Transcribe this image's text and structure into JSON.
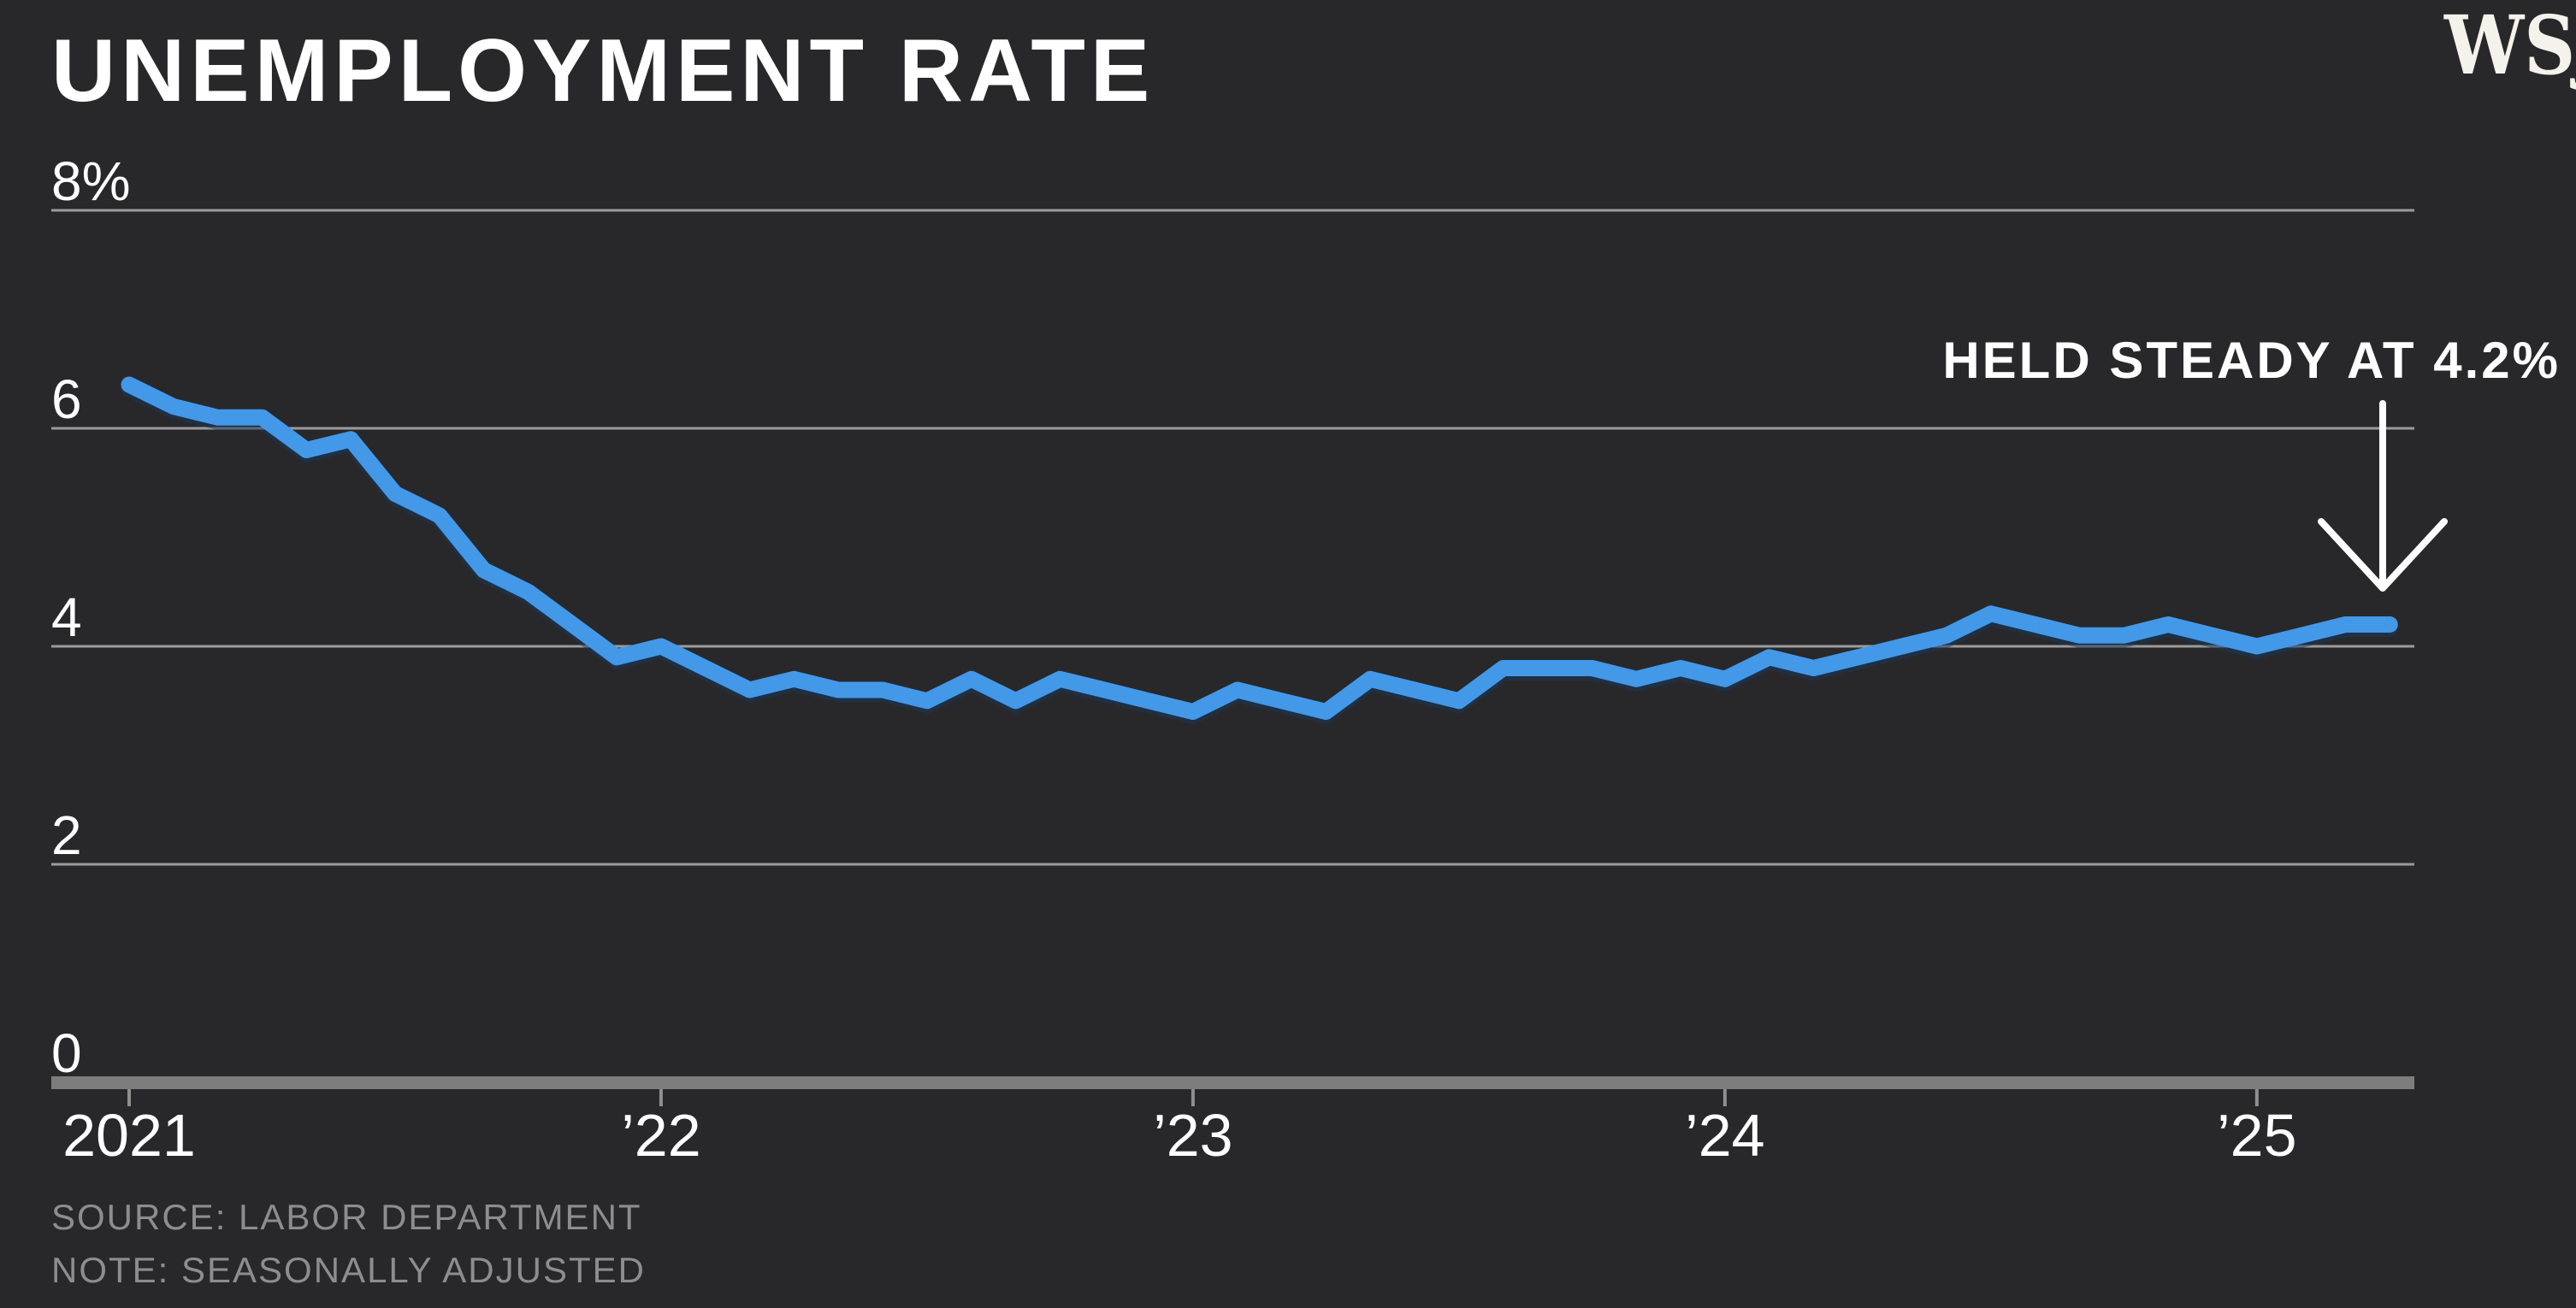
{
  "header": {
    "title": "UNEMPLOYMENT RATE",
    "logo_text": "WSJ."
  },
  "annotation": {
    "label": "HELD STEADY AT 4.2%"
  },
  "footer": {
    "source_line": "SOURCE: LABOR DEPARTMENT",
    "note_line": "NOTE: SEASONALLY ADJUSTED"
  },
  "colors": {
    "background": "#28282a",
    "accent_line": "#4398e8",
    "line_shadow": "#16375e",
    "gridline": "#9b9b9b",
    "axis_bar": "#7d7d7d",
    "tick": "#8f8f8f",
    "text_primary": "#ffffff",
    "text_muted": "#8d8d8d"
  },
  "chart_data": {
    "type": "line",
    "title": "UNEMPLOYMENT RATE",
    "y_unit": "percent",
    "x_start": "Jan 2021",
    "x_end": "Apr 2025",
    "frequency": "monthly",
    "grid": true,
    "legend": false,
    "ylim": [
      0,
      8.3
    ],
    "y_ticks": [
      {
        "label": "8%",
        "value": 8
      },
      {
        "label": "6",
        "value": 6
      },
      {
        "label": "4",
        "value": 4
      },
      {
        "label": "2",
        "value": 2
      },
      {
        "label": "0",
        "value": 0
      }
    ],
    "x_ticks": [
      {
        "label": "2021",
        "month_index": 0
      },
      {
        "label": "’22",
        "month_index": 12
      },
      {
        "label": "’23",
        "month_index": 24
      },
      {
        "label": "’24",
        "month_index": 36
      },
      {
        "label": "’25",
        "month_index": 48
      }
    ],
    "series": [
      {
        "name": "Unemployment rate, seasonally adjusted",
        "color": "#4398e8",
        "values": [
          6.4,
          6.2,
          6.1,
          6.1,
          5.8,
          5.9,
          5.4,
          5.2,
          4.7,
          4.5,
          4.2,
          3.9,
          4.0,
          3.8,
          3.6,
          3.7,
          3.6,
          3.6,
          3.5,
          3.7,
          3.5,
          3.7,
          3.6,
          3.5,
          3.4,
          3.6,
          3.5,
          3.4,
          3.7,
          3.6,
          3.5,
          3.8,
          3.8,
          3.8,
          3.7,
          3.8,
          3.7,
          3.9,
          3.8,
          3.9,
          4.0,
          4.1,
          4.3,
          4.2,
          4.1,
          4.1,
          4.2,
          4.1,
          4.0,
          4.1,
          4.2,
          4.2
        ]
      }
    ],
    "annotation": {
      "text": "HELD STEADY AT 4.2%",
      "points_to": "last value, 4.2% in Apr 2025"
    }
  }
}
